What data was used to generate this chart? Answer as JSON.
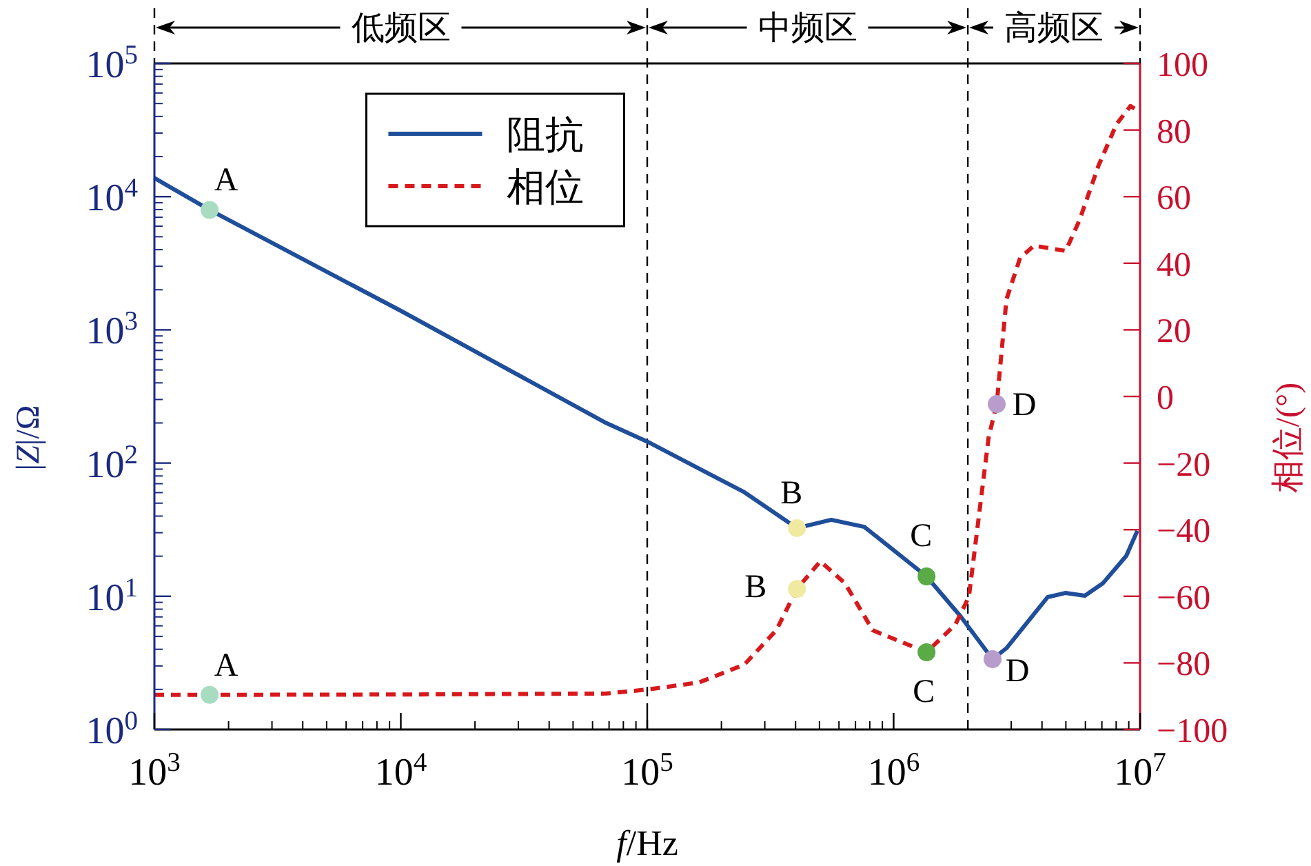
{
  "chart_data": {
    "type": "line",
    "xlabel": "*f*/Hz",
    "ylabel": "|*Z*|/Ω",
    "y2label": "相位/(°)",
    "log": "xy",
    "legend": "top left",
    "grid": false,
    "xlim": [
      1000,
      10000000
    ],
    "xticks": [
      {
        "value": 1000,
        "label": "10$^{3}$"
      },
      {
        "value": 10000,
        "label": "10$^{4}$"
      },
      {
        "value": 100000,
        "label": "10$^{5}$"
      },
      {
        "value": 1000000,
        "label": "10$^{6}$"
      },
      {
        "value": 10000000,
        "label": "10$^{7}$"
      }
    ],
    "ylim": [
      1,
      100000
    ],
    "yticks": [
      {
        "value": 1,
        "label": "10$^{0}$"
      },
      {
        "value": 10,
        "label": "10$^{1}$"
      },
      {
        "value": 100,
        "label": "10$^{2}$"
      },
      {
        "value": 1000,
        "label": "10$^{3}$"
      },
      {
        "value": 10000,
        "label": "10$^{4}$"
      },
      {
        "value": 100000,
        "label": "10$^{5}$"
      }
    ],
    "y2lim": [
      -100,
      100
    ],
    "y2ticks": [
      -100,
      -80,
      -60,
      -40,
      -20,
      0,
      20,
      40,
      60,
      80,
      100
    ],
    "series": [
      {
        "name": "阻抗",
        "color": "#1f4e9a",
        "line_style": "solid",
        "axis": "y",
        "x": [
          1000,
          1675,
          10000,
          68400,
          100000,
          248000,
          405000,
          558000,
          760000,
          1360000,
          1870000,
          2520000,
          2870000,
          4220000,
          4990000,
          5970000,
          7060000,
          8790000,
          9750000
        ],
        "values": [
          13800,
          7950,
          1390,
          199,
          145,
          60.4,
          32.5,
          37.5,
          33.2,
          14.1,
          7.06,
          3.37,
          4.08,
          9.86,
          10.6,
          10.1,
          12.5,
          20.1,
          31.0
        ]
      },
      {
        "name": "相位",
        "color": "#d7191c",
        "line_style": "dashed",
        "axis": "y2",
        "x": [
          1000,
          1675,
          10000,
          68400,
          100000,
          162000,
          248000,
          334000,
          405000,
          504000,
          635000,
          822000,
          1360000,
          1780000,
          2020000,
          2430000,
          2620000,
          2870000,
          3260000,
          3710000,
          4990000,
          5670000,
          6790000,
          8030000,
          9140000,
          9750000
        ],
        "values": [
          -89.6,
          -89.6,
          -89.5,
          -89.2,
          -88,
          -85.9,
          -80.5,
          -70.2,
          -57.8,
          -49.5,
          -56.1,
          -70.2,
          -76.8,
          -68.5,
          -60.2,
          -12.2,
          -2.3,
          29.2,
          41.6,
          45.3,
          43.7,
          52.8,
          69.4,
          81.8,
          87.2,
          85.9
        ]
      },
      {
        "type": "scatter",
        "marker": "circle",
        "axis": "y",
        "x": [
          1675,
          405000,
          1360000,
          2520000
        ],
        "values": [
          7950,
          32.5,
          14.1,
          3.37
        ],
        "value_labels": [
          "A",
          "B",
          "C",
          "D"
        ],
        "colors": [
          "#a8dcc0",
          "#f0eaa0",
          "#5aaa46",
          "#b89ccc"
        ]
      },
      {
        "type": "scatter",
        "marker": "circle",
        "axis": "y2",
        "x": [
          1675,
          405000,
          1360000,
          2620000
        ],
        "values": [
          -89.6,
          -57.8,
          -76.8,
          -2.3
        ],
        "value_labels": [
          "A",
          "B",
          "C",
          "D"
        ],
        "colors": [
          "#a8dcc0",
          "#f0eaa0",
          "#5aaa46",
          "#b89ccc"
        ]
      }
    ],
    "ref_lines": [
      {
        "axis": "x",
        "value": 100000,
        "line_style": "dashed",
        "color": "#000000"
      },
      {
        "axis": "x",
        "value": 2000000,
        "line_style": "dashed",
        "color": "#000000"
      }
    ],
    "annotations": [
      "低频区",
      "中频区",
      "高频区"
    ]
  }
}
